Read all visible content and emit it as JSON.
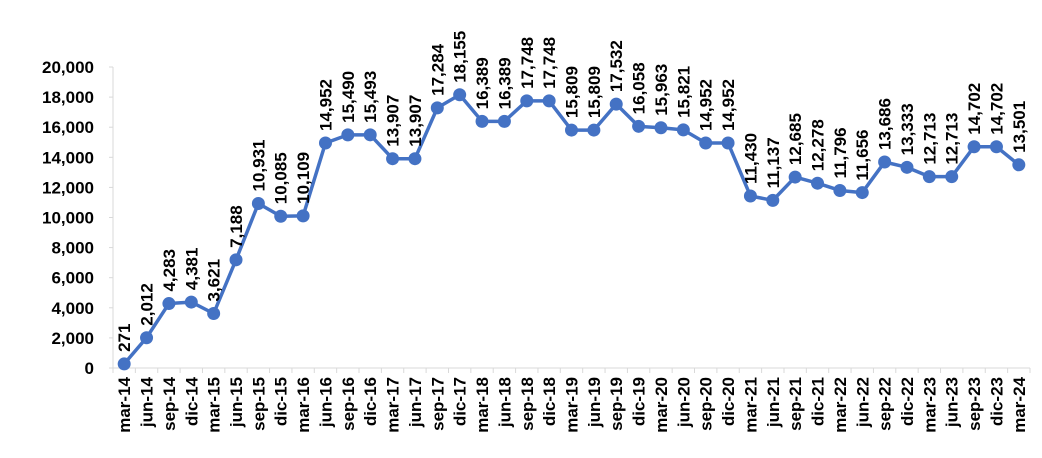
{
  "chart_data": {
    "type": "line",
    "categories": [
      "mar-14",
      "jun-14",
      "sep-14",
      "dic-14",
      "mar-15",
      "jun-15",
      "sep-15",
      "dic-15",
      "mar-16",
      "jun-16",
      "sep-16",
      "dic-16",
      "mar-17",
      "jun-17",
      "sep-17",
      "dic-17",
      "mar-18",
      "jun-18",
      "sep-18",
      "dic-18",
      "mar-19",
      "jun-19",
      "sep-19",
      "dic-19",
      "mar-20",
      "jun-20",
      "sep-20",
      "dic-20",
      "mar-21",
      "jun-21",
      "sep-21",
      "dic-21",
      "mar-22",
      "jun-22",
      "sep-22",
      "dic-22",
      "mar-23",
      "jun-23",
      "sep-23",
      "dic-23",
      "mar-24"
    ],
    "values": [
      271,
      2012,
      4283,
      4381,
      3621,
      7188,
      10931,
      10085,
      10109,
      14952,
      15490,
      15493,
      13907,
      13907,
      17284,
      18155,
      16389,
      16389,
      17748,
      17748,
      15809,
      15809,
      17532,
      16058,
      15963,
      15821,
      14952,
      14952,
      11430,
      11137,
      12685,
      12278,
      11796,
      11656,
      13686,
      13333,
      12713,
      12713,
      14702,
      14702,
      13501
    ],
    "data_labels": [
      "271",
      "2,012",
      "4,283",
      "4,381",
      "3,621",
      "7,188",
      "10,931",
      "10,085",
      "10,109",
      "14,952",
      "15,490",
      "15,493",
      "13,907",
      "13,907",
      "17,284",
      "18,155",
      "16,389",
      "16,389",
      "17,748",
      "17,748",
      "15,809",
      "15,809",
      "17,532",
      "16,058",
      "15,963",
      "15,821",
      "14,952",
      "14,952",
      "11,430",
      "11,137",
      "12,685",
      "12,278",
      "11,796",
      "11,656",
      "13,686",
      "13,333",
      "12,713",
      "12,713",
      "14,702",
      "14,702",
      "13,501"
    ],
    "y_ticks": [
      "0",
      "2,000",
      "4,000",
      "6,000",
      "8,000",
      "10,000",
      "12,000",
      "14,000",
      "16,000",
      "18,000",
      "20,000"
    ],
    "ylim": [
      0,
      20000
    ],
    "title": "",
    "xlabel": "",
    "ylabel": "",
    "grid": false,
    "legend": "none",
    "colors": {
      "line": "#4472C4",
      "marker": "#4472C4",
      "axis": "#D9D9D9"
    }
  }
}
